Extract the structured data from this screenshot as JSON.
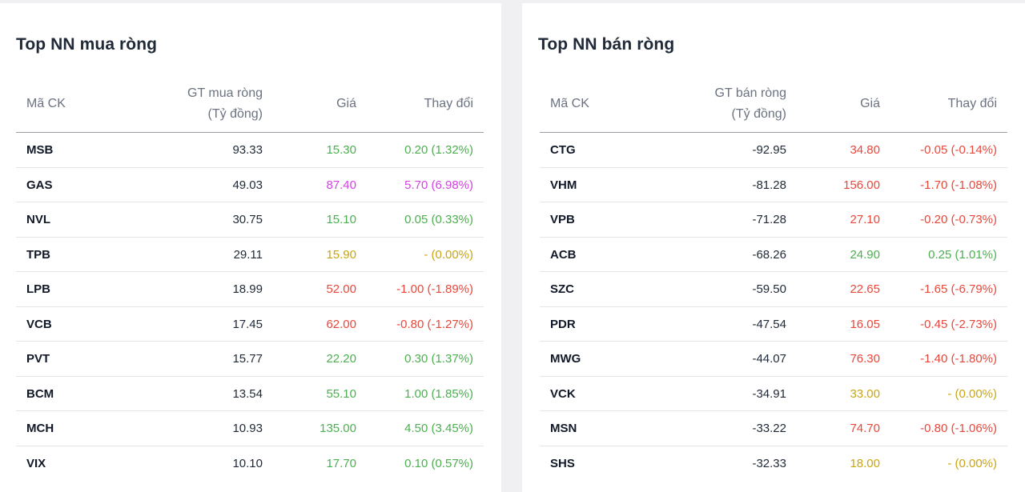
{
  "colors": {
    "up": "#4caf50",
    "down": "#e8473b",
    "ceiling": "#d63ee6",
    "reference": "#c8a515"
  },
  "buy": {
    "title": "Top NN mua ròng",
    "headers": {
      "code": "Mã CK",
      "value_line1": "GT mua ròng",
      "value_line2": "(Tỷ đồng)",
      "price": "Giá",
      "change": "Thay đổi"
    },
    "rows": [
      {
        "code": "MSB",
        "value": "93.33",
        "price": "15.30",
        "change": "0.20 (1.32%)",
        "status": "up"
      },
      {
        "code": "GAS",
        "value": "49.03",
        "price": "87.40",
        "change": "5.70 (6.98%)",
        "status": "ceil"
      },
      {
        "code": "NVL",
        "value": "30.75",
        "price": "15.10",
        "change": "0.05 (0.33%)",
        "status": "up"
      },
      {
        "code": "TPB",
        "value": "29.11",
        "price": "15.90",
        "change": "- (0.00%)",
        "status": "ref"
      },
      {
        "code": "LPB",
        "value": "18.99",
        "price": "52.00",
        "change": "-1.00 (-1.89%)",
        "status": "down"
      },
      {
        "code": "VCB",
        "value": "17.45",
        "price": "62.00",
        "change": "-0.80 (-1.27%)",
        "status": "down"
      },
      {
        "code": "PVT",
        "value": "15.77",
        "price": "22.20",
        "change": "0.30 (1.37%)",
        "status": "up"
      },
      {
        "code": "BCM",
        "value": "13.54",
        "price": "55.10",
        "change": "1.00 (1.85%)",
        "status": "up"
      },
      {
        "code": "MCH",
        "value": "10.93",
        "price": "135.00",
        "change": "4.50 (3.45%)",
        "status": "up"
      },
      {
        "code": "VIX",
        "value": "10.10",
        "price": "17.70",
        "change": "0.10 (0.57%)",
        "status": "up"
      }
    ]
  },
  "sell": {
    "title": "Top NN bán ròng",
    "headers": {
      "code": "Mã CK",
      "value_line1": "GT bán ròng",
      "value_line2": "(Tỷ đồng)",
      "price": "Giá",
      "change": "Thay đổi"
    },
    "rows": [
      {
        "code": "CTG",
        "value": "-92.95",
        "price": "34.80",
        "change": "-0.05 (-0.14%)",
        "status": "down"
      },
      {
        "code": "VHM",
        "value": "-81.28",
        "price": "156.00",
        "change": "-1.70 (-1.08%)",
        "status": "down"
      },
      {
        "code": "VPB",
        "value": "-71.28",
        "price": "27.10",
        "change": "-0.20 (-0.73%)",
        "status": "down"
      },
      {
        "code": "ACB",
        "value": "-68.26",
        "price": "24.90",
        "change": "0.25 (1.01%)",
        "status": "up"
      },
      {
        "code": "SZC",
        "value": "-59.50",
        "price": "22.65",
        "change": "-1.65 (-6.79%)",
        "status": "down"
      },
      {
        "code": "PDR",
        "value": "-47.54",
        "price": "16.05",
        "change": "-0.45 (-2.73%)",
        "status": "down"
      },
      {
        "code": "MWG",
        "value": "-44.07",
        "price": "76.30",
        "change": "-1.40 (-1.80%)",
        "status": "down"
      },
      {
        "code": "VCK",
        "value": "-34.91",
        "price": "33.00",
        "change": "- (0.00%)",
        "status": "ref"
      },
      {
        "code": "MSN",
        "value": "-33.22",
        "price": "74.70",
        "change": "-0.80 (-1.06%)",
        "status": "down"
      },
      {
        "code": "SHS",
        "value": "-32.33",
        "price": "18.00",
        "change": "- (0.00%)",
        "status": "ref"
      }
    ]
  }
}
